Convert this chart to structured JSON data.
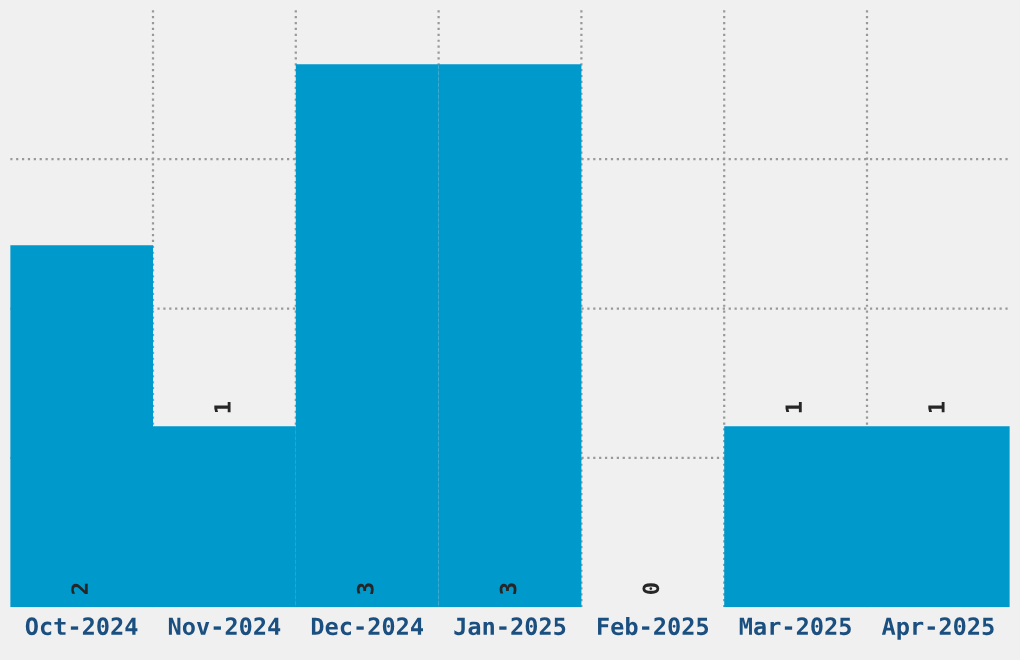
{
  "chart_data": {
    "type": "bar",
    "categories": [
      "Oct-2024",
      "Nov-2024",
      "Dec-2024",
      "Jan-2025",
      "Feb-2025",
      "Mar-2025",
      "Apr-2025"
    ],
    "values": [
      2,
      1,
      3,
      3,
      0,
      1,
      1
    ],
    "color": "#0099cc",
    "data_labels": true,
    "grid": true,
    "ylim": [
      0,
      3.3
    ],
    "yticks": [
      {
        "value": 0.825,
        "label": null
      },
      {
        "value": 1.65,
        "label": null
      },
      {
        "value": 2.475,
        "label": null
      }
    ]
  }
}
